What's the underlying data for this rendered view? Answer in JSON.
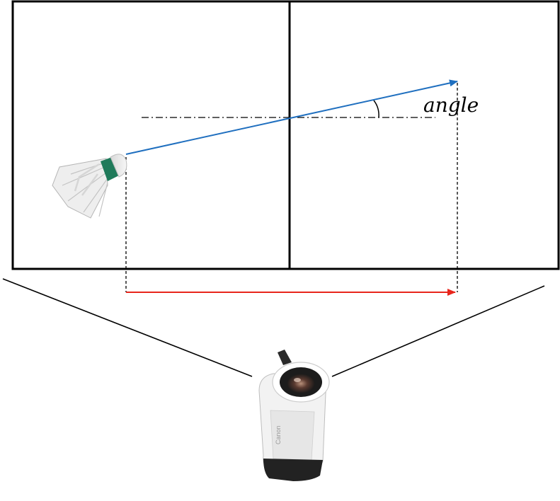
{
  "figure": {
    "angle_label": "angle",
    "camera_brand": "Canon"
  },
  "colors": {
    "court_line": "#000000",
    "trajectory": "#1f6fbf",
    "projection": "#e8261c",
    "camera_body": "#f2f2f2"
  }
}
